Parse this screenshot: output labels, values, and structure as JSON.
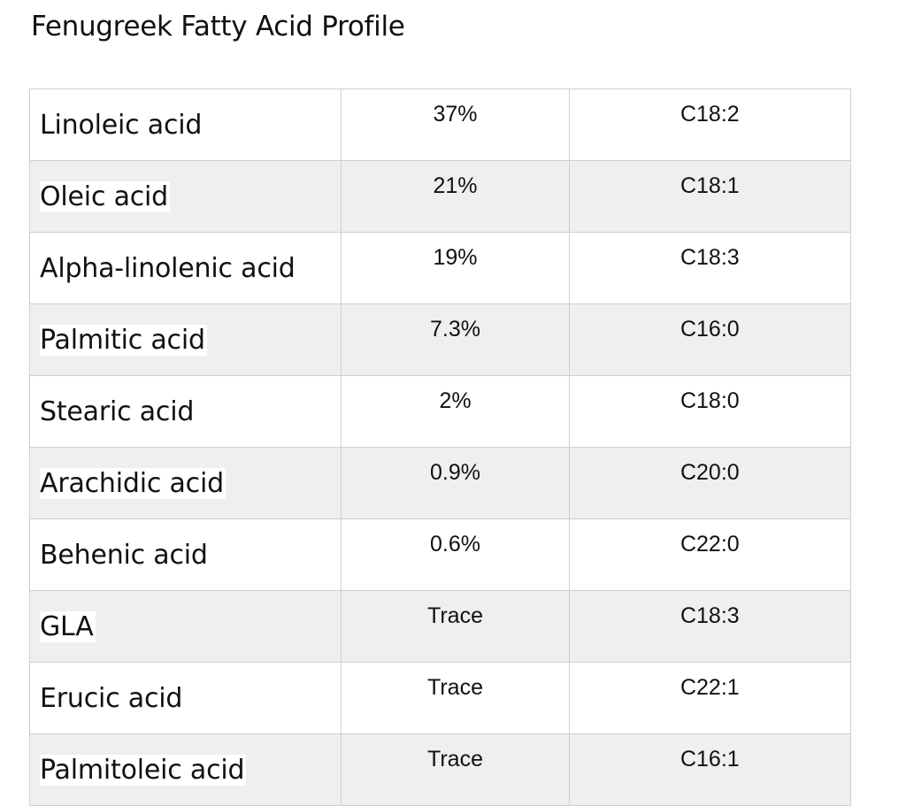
{
  "document": {
    "title": "Fenugreek Fatty Acid Profile"
  },
  "table": {
    "rows": [
      {
        "name": "Linoleic acid",
        "percent": "37%",
        "carbon": "C18:2"
      },
      {
        "name": "Oleic acid",
        "percent": "21%",
        "carbon": "C18:1"
      },
      {
        "name": "Alpha-linolenic acid",
        "percent": "19%",
        "carbon": "C18:3"
      },
      {
        "name": "Palmitic acid",
        "percent": "7.3%",
        "carbon": "C16:0"
      },
      {
        "name": "Stearic acid",
        "percent": "2%",
        "carbon": "C18:0"
      },
      {
        "name": "Arachidic acid",
        "percent": "0.9%",
        "carbon": "C20:0"
      },
      {
        "name": "Behenic acid",
        "percent": "0.6%",
        "carbon": "C22:0"
      },
      {
        "name": "GLA",
        "percent": "Trace",
        "carbon": "C18:3"
      },
      {
        "name": "Erucic acid",
        "percent": "Trace",
        "carbon": "C22:1"
      },
      {
        "name": "Palmitoleic acid",
        "percent": "Trace",
        "carbon": "C16:1"
      }
    ]
  }
}
